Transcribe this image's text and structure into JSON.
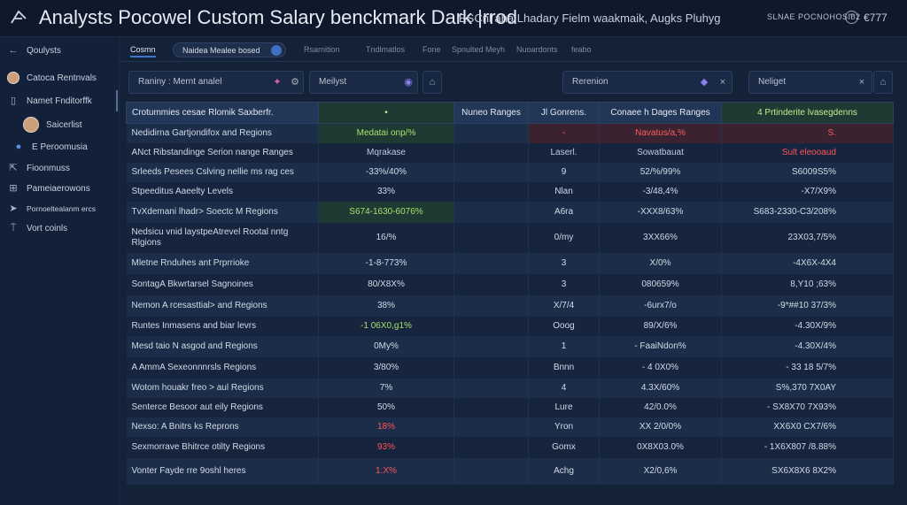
{
  "window": {
    "title": "Analysts Pocowel  Custom Salary benckmark Dark |rrod",
    "subtitle": "ESCnl aha Lhadary Fielm waakmaik, Augks Pluhyg",
    "status_text": "SLNAE POCNOHOSI02",
    "status_value": "€777"
  },
  "sidebar": {
    "items": [
      {
        "label": "Qoulysts",
        "icon": "back-arrow-icon"
      },
      {
        "label": "Catoca Rentnvals",
        "icon": "avatar"
      },
      {
        "label": "Namet Fnditorffk",
        "icon": "document-icon"
      },
      {
        "label": "Saicerlist",
        "icon": "avatar"
      },
      {
        "label": "E Peroomusia",
        "icon": "group-icon"
      },
      {
        "label": "Fioonmuss",
        "icon": "export-icon"
      },
      {
        "label": "Pameiaerowons",
        "icon": "grid-icon"
      },
      {
        "label": "Pornoeltealanm ercs",
        "icon": "send-icon"
      },
      {
        "label": "Vort coinls",
        "icon": "pin-icon"
      }
    ]
  },
  "tabs": [
    {
      "label": "Cosmn",
      "active": true
    },
    {
      "label": "Naidea Mealee bosed",
      "pill": true
    },
    {
      "label": "Rsarnition"
    },
    {
      "label": "Tndlmatlos"
    },
    {
      "label": "Fone"
    },
    {
      "label": "Spnulted Meyh"
    },
    {
      "label": "Nuoardonts"
    },
    {
      "label": "feabo"
    }
  ],
  "filters": [
    {
      "text": "Raniny :  Mernt analel"
    },
    {
      "text": "Meilyst"
    },
    {
      "text": "Rerenion"
    },
    {
      "text": "Neliget"
    }
  ],
  "table": {
    "headers": [
      "Crotummies cesae Rlomik Saxberfr.",
      "•",
      "Nuneo Ranges",
      "Jl Gonrens.",
      "Conaee h Dages Ranges",
      "4 Prtinderite lvasegdenns"
    ],
    "rows": [
      [
        "Nedidirna Gartjondifox and Regions",
        "Medatai onp/%",
        "",
        "-",
        "Navatus/a,%",
        "S."
      ],
      [
        "ANct Ribstandinge Serion nange Ranges",
        "Mqrakase",
        "",
        "Laserl.",
        "Sowatbauat",
        "Sult eleooaud"
      ],
      [
        "Srleeds Pesees Cslving nellie ms rag ces",
        "-33%/40%",
        "",
        "9",
        "52/%/99%",
        "S6009S5%"
      ],
      [
        "Stpeeditus Aaeelty Levels",
        "33%",
        "",
        "Nlan",
        "-3/48,4%",
        "-X7/X9%"
      ],
      [
        "TvXdemani lhadr> Soectc M Regions",
        "S674-1630-6076%",
        "",
        "A6ra",
        "-XXX8/63%",
        "S683-2330-C3/208%"
      ],
      [
        "Nedsicu vnid laystpeAtrevel Rootal nntg Rlgions",
        "16/%",
        "",
        "0/my",
        "3XX66%",
        "23X03,7/5%"
      ],
      [
        "Mletne Rnduhes ant Prprrioke",
        "-1-8-773%",
        "",
        "3",
        "X/0%",
        "-4X6X-4X4"
      ],
      [
        "SontagA Bkwrtarsel Sagnoines",
        "80/X8X%",
        "",
        "3",
        "080659%",
        "8,Y10 ;63%"
      ],
      [
        "Nemon A rcesasttial> and Regions",
        "38%",
        "",
        "X/7/4",
        "-6urx7/o",
        "-9*##10 37/3%"
      ],
      [
        "Runtes Inmasens and biar levrs",
        "-1 06X0,g1%",
        "",
        "Ooog",
        "89/X/6%",
        "-4.30X/9%"
      ],
      [
        "Mesd taio N asgod and Regions",
        "0My%",
        "",
        "1",
        "- FaaiNdon%",
        "-4.30X/4%"
      ],
      [
        "A AmmA Sexeonnnrsls Regions",
        "3/80%",
        "",
        "Bnnn",
        "- 4 0X0%",
        "- 33 18 5/7%"
      ],
      [
        "Wotom houakr freo > aul Regions",
        "7%",
        "",
        "4",
        "4.3X/60%",
        "S%,370 7X0AY"
      ],
      [
        "Senterce Besoor aut eily Regions",
        "50%",
        "",
        "Lure",
        "42/0.0%",
        "- SX8X70 7X93%"
      ],
      [
        "Nexso: A Bnitrs ks Reprons",
        "18%",
        "",
        "Yron",
        "XX 2/0/0%",
        "XX6X0 CX7/6%"
      ],
      [
        "Sexmorrave Bhitrce otilty Regions",
        "93%",
        "",
        "Gomx",
        "0X8X03.0%",
        "- 1X6X807 /8.88%"
      ],
      [
        "Vonter Fayde rre 9oshl heres",
        "1.X%",
        "",
        "Achg",
        "X2/0,6%",
        "SX6X8X6 8X2%"
      ]
    ]
  },
  "colors": {
    "background": "#142238",
    "accent": "#3c74c9",
    "positive": "#a9e06a",
    "negative": "#ff5555"
  }
}
